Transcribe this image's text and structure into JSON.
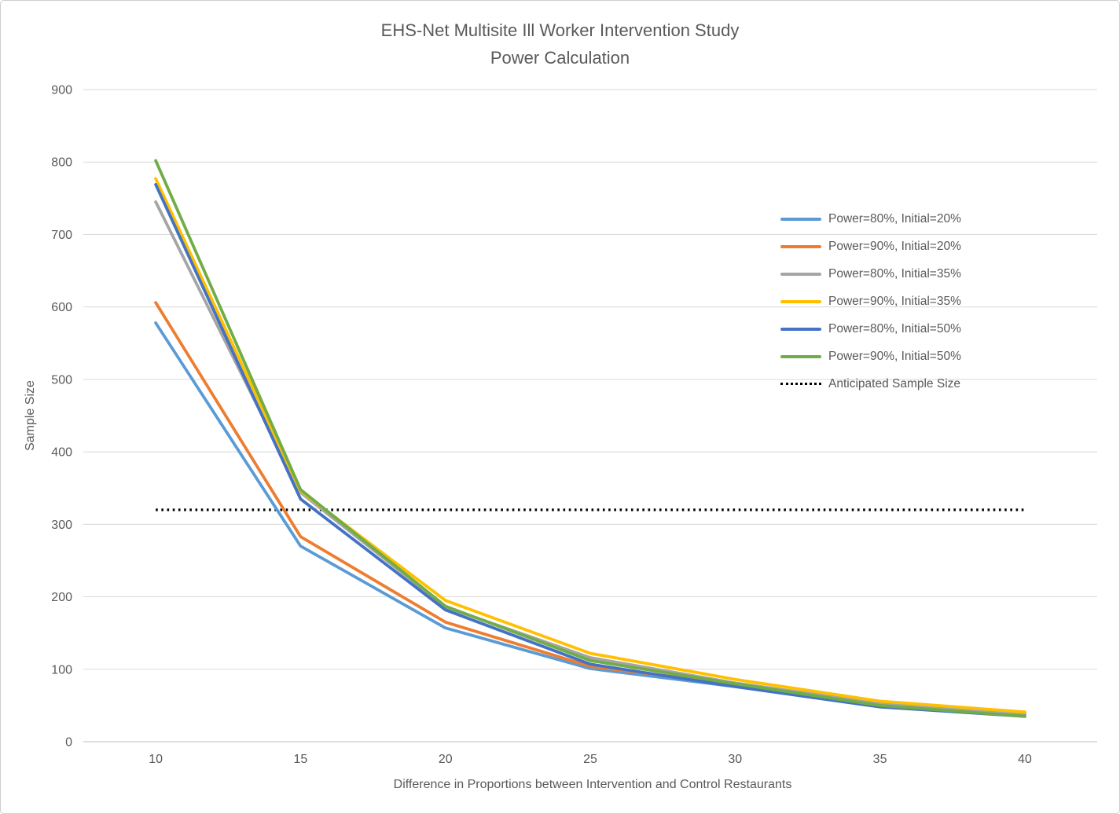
{
  "title": {
    "line1": "EHS-Net Multisite Ill Worker Intervention Study",
    "line2": "Power Calculation"
  },
  "chart_data": {
    "type": "line",
    "x": [
      10,
      15,
      20,
      25,
      30,
      35,
      40
    ],
    "xticks": [
      10,
      15,
      20,
      25,
      30,
      35,
      40
    ],
    "xlabel": "Difference in Proportions between Intervention and Control Restaurants",
    "ylabel": "Sample Size",
    "ylim": [
      0,
      900
    ],
    "ytick_interval": 100,
    "grid": "horizontal",
    "legend_position": "upper-right-inside",
    "series": [
      {
        "name": "Power=80%, Initial=20%",
        "color": "#5B9BD5",
        "values": [
          578,
          270,
          157,
          101,
          76,
          50,
          37
        ]
      },
      {
        "name": "Power=90%, Initial=20%",
        "color": "#ED7D31",
        "values": [
          606,
          283,
          165,
          104,
          79,
          52,
          40
        ]
      },
      {
        "name": "Power=80%, Initial=35%",
        "color": "#A5A5A5",
        "values": [
          745,
          344,
          186,
          116,
          81,
          53,
          38
        ]
      },
      {
        "name": "Power=90%, Initial=35%",
        "color": "#FFC000",
        "values": [
          777,
          346,
          195,
          122,
          86,
          56,
          41
        ]
      },
      {
        "name": "Power=80%, Initial=50%",
        "color": "#4472C4",
        "values": [
          769,
          335,
          182,
          107,
          76,
          48,
          35
        ]
      },
      {
        "name": "Power=90%, Initial=50%",
        "color": "#70AD47",
        "values": [
          802,
          348,
          187,
          112,
          80,
          50,
          35
        ]
      }
    ],
    "reference_line": {
      "name": "Anticipated Sample Size",
      "value": 320,
      "color": "#000000",
      "style": "dotted"
    },
    "colors": {
      "gridline": "#D9D9D9",
      "axis_line": "#BFBFBF",
      "text": "#595959"
    }
  }
}
